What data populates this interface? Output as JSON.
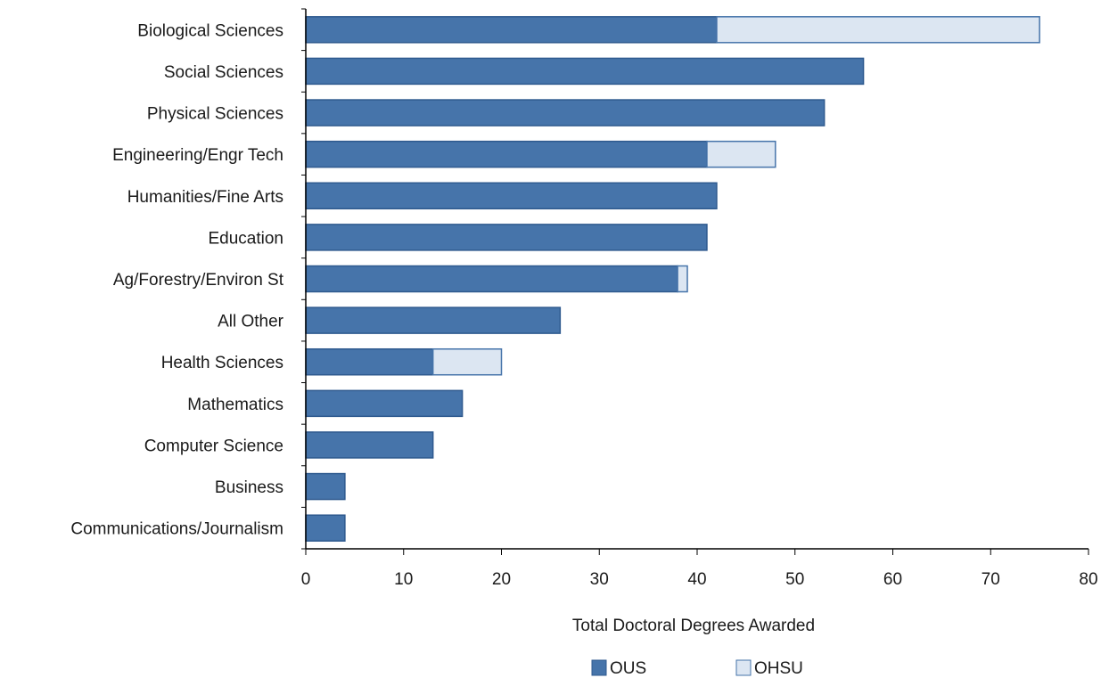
{
  "chart_data": {
    "type": "bar",
    "orientation": "horizontal",
    "stacked": true,
    "categories": [
      "Biological Sciences",
      "Social Sciences",
      "Physical Sciences",
      "Engineering/Engr Tech",
      "Humanities/Fine Arts",
      "Education",
      "Ag/Forestry/Environ St",
      "All Other",
      "Health Sciences",
      "Mathematics",
      "Computer Science",
      "Business",
      "Communications/Journalism"
    ],
    "series": [
      {
        "name": "OUS",
        "color": "#4674aa",
        "values": [
          42,
          57,
          53,
          41,
          42,
          41,
          38,
          26,
          13,
          16,
          13,
          4,
          4
        ]
      },
      {
        "name": "OHSU",
        "color": "#dce6f2",
        "values": [
          33,
          0,
          0,
          7,
          0,
          0,
          1,
          0,
          7,
          0,
          0,
          0,
          0
        ]
      }
    ],
    "xlabel": "Total Doctoral Degrees Awarded",
    "xlim": [
      0,
      80
    ],
    "xticks": [
      "0",
      "10",
      "20",
      "30",
      "40",
      "50",
      "60",
      "70",
      "80"
    ],
    "grid": false,
    "legend_position": "bottom"
  }
}
